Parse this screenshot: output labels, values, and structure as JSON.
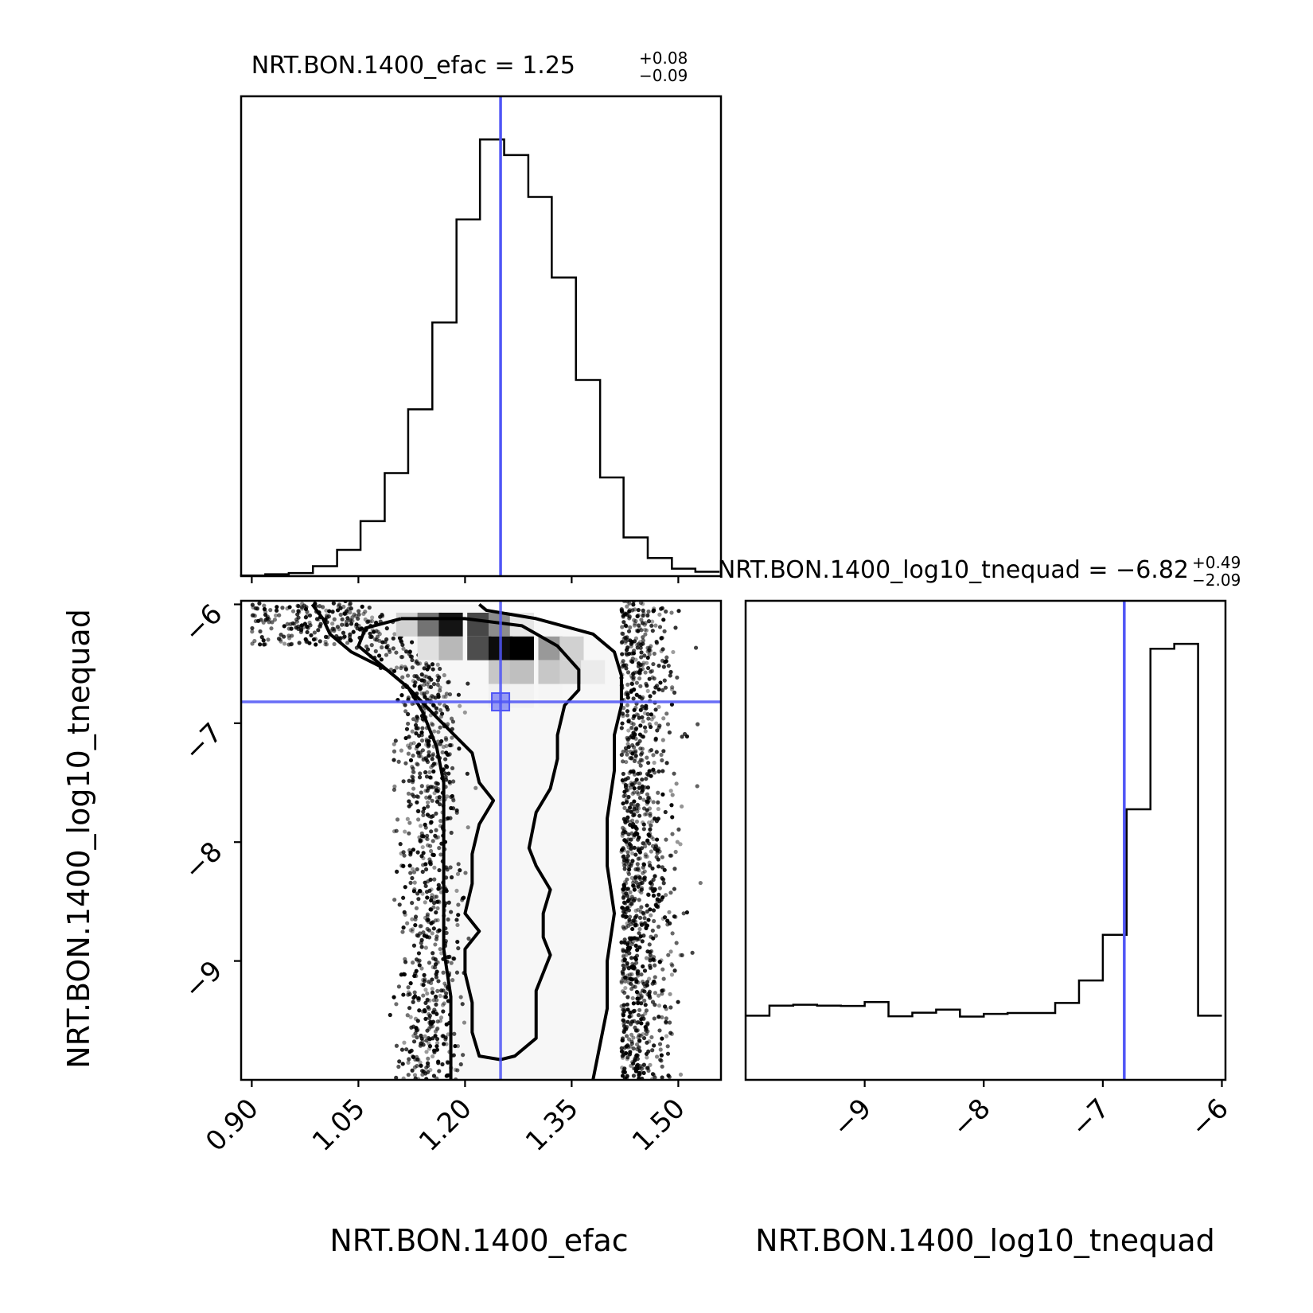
{
  "chart_data": {
    "type": "corner",
    "parameters": [
      "NRT.BON.1400_efac",
      "NRT.BON.1400_log10_tnequad"
    ],
    "truths": {
      "efac": 1.25,
      "log10_tnequad": -6.82
    },
    "titles": {
      "efac": {
        "prefix": "NRT.BON.1400_efac = 1.25",
        "plus": "+0.08",
        "minus": "−0.09"
      },
      "log10_tnequad": {
        "prefix": "NRT.BON.1400_log10_tnequad = −6.82",
        "plus": "+0.49",
        "minus": "−2.09"
      }
    },
    "xlabels": {
      "efac": "NRT.BON.1400_efac",
      "log10_tnequad": "NRT.BON.1400_log10_tnequad"
    },
    "ylabel": "NRT.BON.1400_log10_tnequad",
    "efac_axis": {
      "range": [
        0.885,
        1.56
      ],
      "ticks": [
        0.9,
        1.05,
        1.2,
        1.35,
        1.5
      ],
      "tick_labels": [
        "0.90",
        "1.05",
        "1.20",
        "1.35",
        "1.50"
      ]
    },
    "tnequad_axis": {
      "range": [
        -10.0,
        -5.97
      ],
      "ticks": [
        -9,
        -8,
        -7,
        -6
      ],
      "tick_labels": [
        "−9",
        "−8",
        "−7",
        "−6"
      ]
    },
    "efac_hist": {
      "bin_edges": [
        0.885,
        0.919,
        0.952,
        0.986,
        1.02,
        1.053,
        1.087,
        1.12,
        1.154,
        1.188,
        1.221,
        1.255,
        1.289,
        1.322,
        1.356,
        1.39,
        1.423,
        1.457,
        1.491,
        1.524,
        1.558
      ],
      "counts": [
        1,
        3,
        5,
        16,
        42,
        88,
        165,
        267,
        406,
        571,
        699,
        674,
        607,
        478,
        314,
        158,
        62,
        29,
        12,
        7
      ]
    },
    "tnequad_hist": {
      "bin_edges": [
        -10.0,
        -9.8,
        -9.6,
        -9.4,
        -9.2,
        -9.0,
        -8.8,
        -8.6,
        -8.4,
        -8.2,
        -8.0,
        -7.8,
        -7.6,
        -7.4,
        -7.2,
        -7.0,
        -6.8,
        -6.6,
        -6.4,
        -6.2,
        -6.0
      ],
      "counts": [
        211,
        244,
        247,
        244,
        243,
        256,
        209,
        221,
        231,
        208,
        217,
        220,
        220,
        253,
        327,
        477,
        890,
        1418,
        1434,
        211
      ]
    },
    "density_2d": {
      "cells": [
        {
          "efac": 1.12,
          "tn": -6.17,
          "w": 0.18
        },
        {
          "efac": 1.15,
          "tn": -6.17,
          "w": 0.55
        },
        {
          "efac": 1.18,
          "tn": -6.17,
          "w": 0.92
        },
        {
          "efac": 1.22,
          "tn": -6.17,
          "w": 0.72
        },
        {
          "efac": 1.25,
          "tn": -6.17,
          "w": 0.45
        },
        {
          "efac": 1.28,
          "tn": -6.17,
          "w": 0.1
        },
        {
          "efac": 1.15,
          "tn": -6.37,
          "w": 0.12
        },
        {
          "efac": 1.18,
          "tn": -6.37,
          "w": 0.28
        },
        {
          "efac": 1.22,
          "tn": -6.37,
          "w": 0.7
        },
        {
          "efac": 1.25,
          "tn": -6.37,
          "w": 0.95
        },
        {
          "efac": 1.28,
          "tn": -6.37,
          "w": 1.0
        },
        {
          "efac": 1.32,
          "tn": -6.37,
          "w": 0.4
        },
        {
          "efac": 1.35,
          "tn": -6.37,
          "w": 0.18
        },
        {
          "efac": 1.25,
          "tn": -6.57,
          "w": 0.22
        },
        {
          "efac": 1.28,
          "tn": -6.57,
          "w": 0.25
        },
        {
          "efac": 1.32,
          "tn": -6.57,
          "w": 0.22
        },
        {
          "efac": 1.35,
          "tn": -6.57,
          "w": 0.18
        },
        {
          "efac": 1.38,
          "tn": -6.57,
          "w": 0.08
        },
        {
          "efac": 1.25,
          "tn": -6.77,
          "w": 0.06
        },
        {
          "efac": 1.28,
          "tn": -6.77,
          "w": 0.05
        },
        {
          "efac": 1.32,
          "tn": -6.77,
          "w": 0.04
        }
      ]
    },
    "contours": {
      "inner": [
        [
          1.11,
          -6.12
        ],
        [
          1.2,
          -6.12
        ],
        [
          1.28,
          -6.18
        ],
        [
          1.33,
          -6.35
        ],
        [
          1.36,
          -6.55
        ],
        [
          1.36,
          -6.72
        ],
        [
          1.34,
          -6.85
        ],
        [
          1.33,
          -7.1
        ],
        [
          1.33,
          -7.3
        ],
        [
          1.32,
          -7.55
        ],
        [
          1.3,
          -7.75
        ],
        [
          1.29,
          -8.05
        ],
        [
          1.3,
          -8.2
        ],
        [
          1.32,
          -8.4
        ],
        [
          1.31,
          -8.6
        ],
        [
          1.31,
          -8.8
        ],
        [
          1.32,
          -8.95
        ],
        [
          1.31,
          -9.1
        ],
        [
          1.3,
          -9.25
        ],
        [
          1.3,
          -9.5
        ],
        [
          1.3,
          -9.65
        ],
        [
          1.27,
          -9.8
        ],
        [
          1.25,
          -9.83
        ],
        [
          1.22,
          -9.8
        ],
        [
          1.21,
          -9.6
        ],
        [
          1.21,
          -9.35
        ],
        [
          1.2,
          -9.1
        ],
        [
          1.2,
          -8.9
        ],
        [
          1.22,
          -8.75
        ],
        [
          1.2,
          -8.6
        ],
        [
          1.21,
          -8.35
        ],
        [
          1.21,
          -8.1
        ],
        [
          1.22,
          -7.85
        ],
        [
          1.24,
          -7.65
        ],
        [
          1.22,
          -7.5
        ],
        [
          1.21,
          -7.25
        ],
        [
          1.16,
          -6.95
        ],
        [
          1.12,
          -6.7
        ],
        [
          1.08,
          -6.5
        ],
        [
          1.05,
          -6.35
        ],
        [
          1.06,
          -6.2
        ],
        [
          1.11,
          -6.12
        ]
      ],
      "outer": [
        [
          0.985,
          -6.0
        ],
        [
          1.0,
          -6.12
        ],
        [
          1.01,
          -6.25
        ],
        [
          1.04,
          -6.4
        ],
        [
          1.09,
          -6.55
        ],
        [
          1.12,
          -6.7
        ],
        [
          1.14,
          -6.9
        ],
        [
          1.16,
          -7.2
        ],
        [
          1.17,
          -7.5
        ],
        [
          1.17,
          -7.8
        ],
        [
          1.17,
          -8.1
        ],
        [
          1.17,
          -8.5
        ],
        [
          1.17,
          -8.9
        ],
        [
          1.18,
          -9.3
        ],
        [
          1.18,
          -9.7
        ],
        [
          1.18,
          -10.0
        ]
      ],
      "outer_right": [
        [
          1.22,
          -6.0
        ],
        [
          1.23,
          -6.05
        ],
        [
          1.3,
          -6.12
        ],
        [
          1.38,
          -6.25
        ],
        [
          1.41,
          -6.4
        ],
        [
          1.42,
          -6.6
        ],
        [
          1.42,
          -6.85
        ],
        [
          1.41,
          -7.1
        ],
        [
          1.41,
          -7.4
        ],
        [
          1.4,
          -7.8
        ],
        [
          1.4,
          -8.2
        ],
        [
          1.41,
          -8.6
        ],
        [
          1.4,
          -9.0
        ],
        [
          1.4,
          -9.4
        ],
        [
          1.39,
          -9.7
        ],
        [
          1.38,
          -10.0
        ]
      ]
    },
    "scatter_band": {
      "left_efac": [
        1.1,
        1.2
      ],
      "right_efac": [
        1.38,
        1.53
      ]
    },
    "grid": false,
    "truth_color": "#4f55f6"
  }
}
